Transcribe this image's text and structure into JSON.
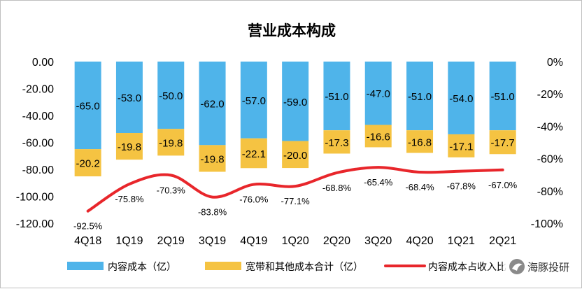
{
  "chart_data": {
    "type": "bar",
    "title": "营业成本构成",
    "categories": [
      "4Q18",
      "1Q19",
      "2Q19",
      "3Q19",
      "4Q19",
      "1Q20",
      "2Q20",
      "3Q20",
      "4Q20",
      "1Q21",
      "2Q21"
    ],
    "series": [
      {
        "name": "内容成本（亿）",
        "type": "bar",
        "axis": "left",
        "color": "#4fb4ea",
        "values": [
          -65.0,
          -53.0,
          -50.0,
          -62.0,
          -57.0,
          -59.0,
          -51.0,
          -47.0,
          -51.0,
          -54.0,
          -51.0
        ],
        "labels": [
          "-65.0",
          "-53.0",
          "-50.0",
          "-62.0",
          "-57.0",
          "-59.0",
          "-51.0",
          "-47.0",
          "-51.0",
          "-54.0",
          "-51.0"
        ]
      },
      {
        "name": "宽带和其他成本合计（亿）",
        "type": "bar",
        "axis": "left",
        "color": "#f5c342",
        "values": [
          -20.2,
          -19.8,
          -19.8,
          -19.8,
          -22.1,
          -20.0,
          -17.3,
          -16.6,
          -16.8,
          -17.1,
          -17.7
        ],
        "labels": [
          "-20.2",
          "-19.8",
          "-19.8",
          "-19.8",
          "-22.1",
          "-20.0",
          "-17.3",
          "-16.6",
          "-16.8",
          "-17.1",
          "-17.7"
        ]
      },
      {
        "name": "内容成本占收入比",
        "type": "line",
        "axis": "right",
        "color": "#e8262b",
        "values": [
          -92.5,
          -75.8,
          -70.3,
          -83.8,
          -76.0,
          -77.1,
          -68.8,
          -65.4,
          -68.4,
          -67.8,
          -67.0
        ],
        "labels": [
          "-92.5%",
          "-75.8%",
          "-70.3%",
          "-83.8%",
          "-76.0%",
          "-77.1%",
          "-68.8%",
          "-65.4%",
          "-68.4%",
          "-67.8%",
          "-67.0%"
        ]
      }
    ],
    "y_left": {
      "min": -120,
      "max": 0,
      "ticks": [
        "0.00",
        "-20.00",
        "-40.00",
        "-60.00",
        "-80.00",
        "-100.00",
        "-120.00"
      ]
    },
    "y_right": {
      "min": -100,
      "max": 0,
      "ticks": [
        "0%",
        "-20%",
        "-40%",
        "-60%",
        "-80%",
        "-100%"
      ]
    },
    "legend_position": "bottom",
    "grid": false
  },
  "watermark": "海豚投研"
}
